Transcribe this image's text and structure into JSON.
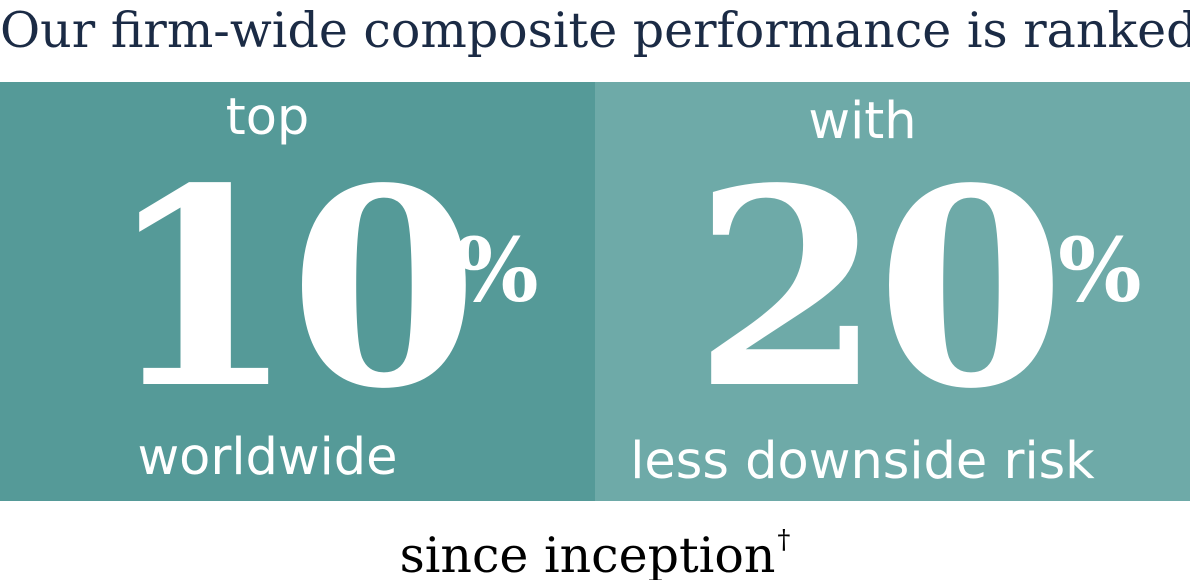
{
  "headline": "Our firm-wide composite performance is ranked",
  "colors": {
    "left_panel": "#559a98",
    "right_panel": "#6eaaa8",
    "headline_text": "#1b2b45",
    "panel_text": "#ffffff"
  },
  "stats": [
    {
      "lead": "top",
      "value": "10",
      "unit": "%",
      "caption": "worldwide"
    },
    {
      "lead": "with",
      "value": "20",
      "unit": "%",
      "caption": "less downside risk"
    }
  ],
  "footer": {
    "text": "since inception",
    "mark": "†"
  }
}
